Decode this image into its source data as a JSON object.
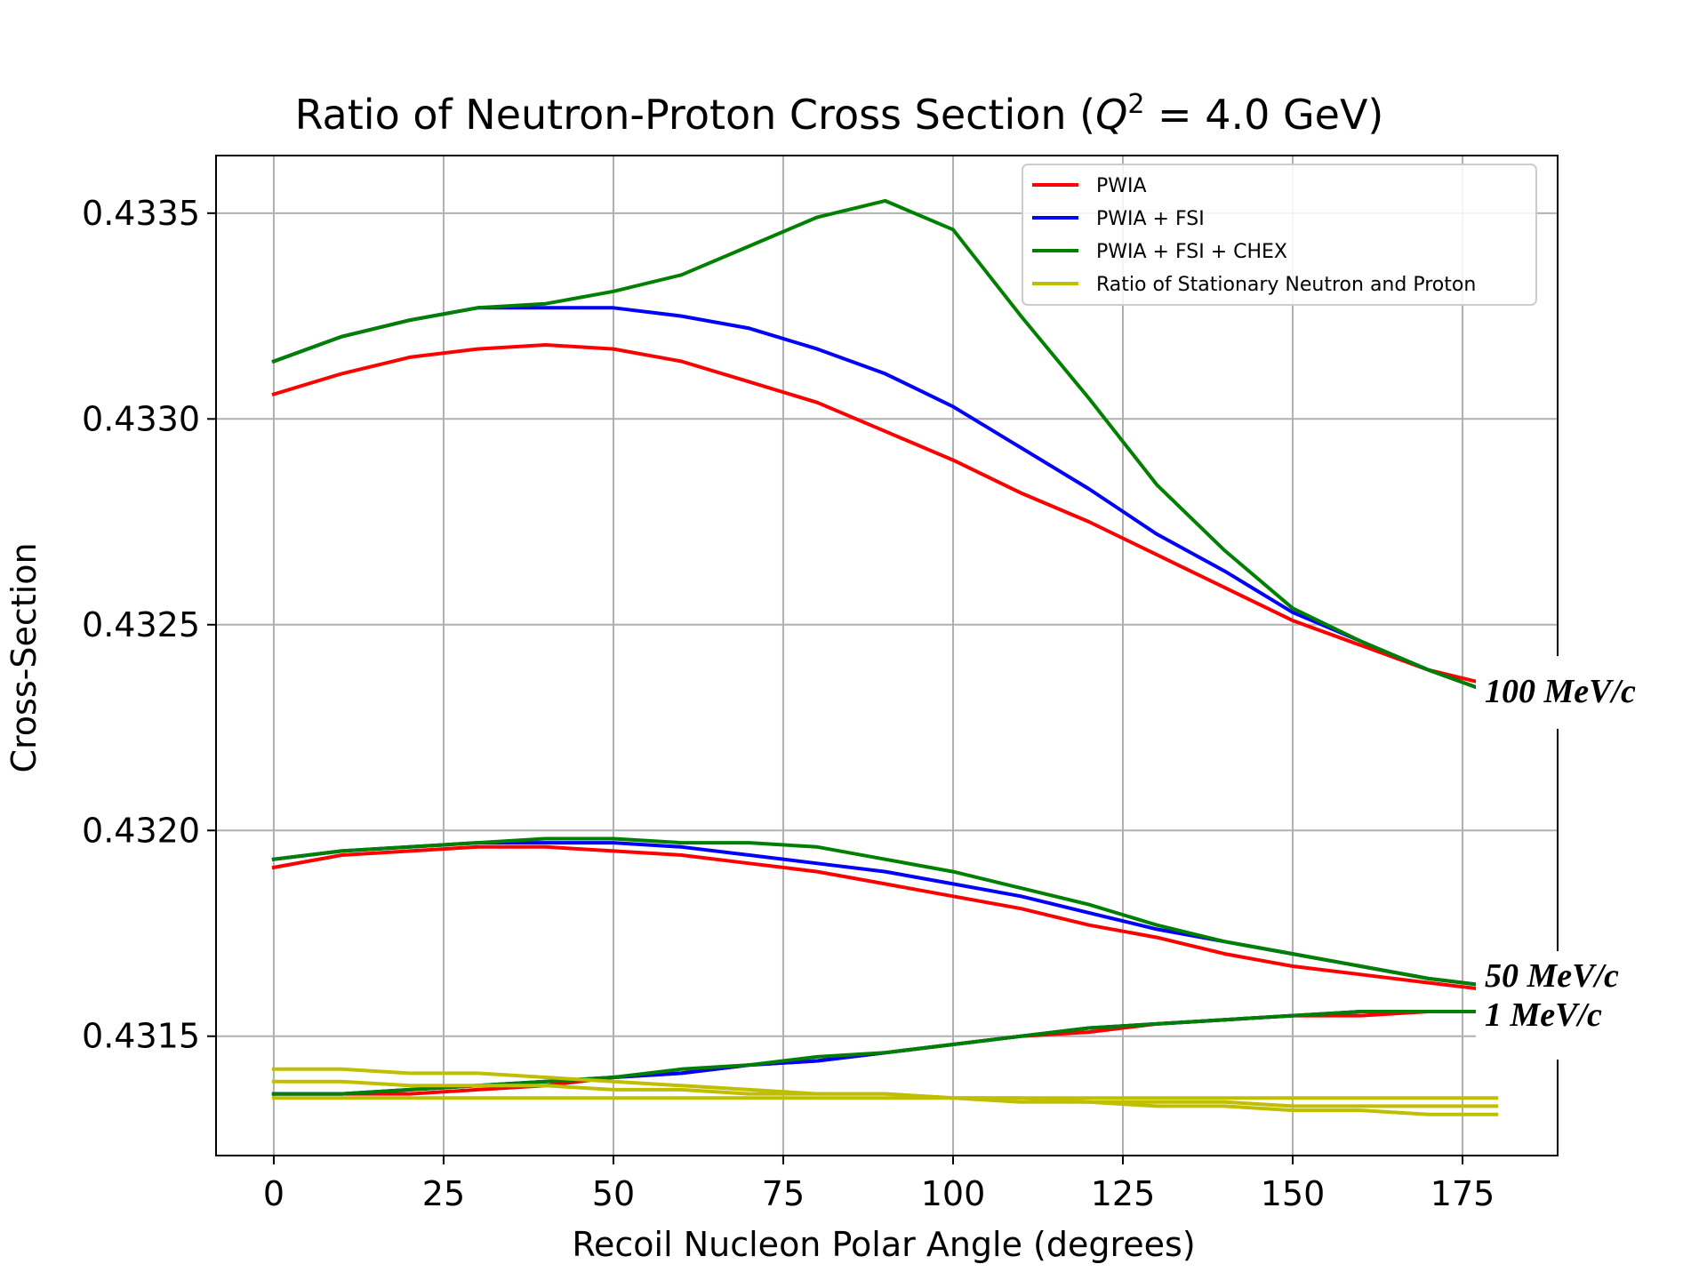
{
  "chart_data": {
    "type": "line",
    "title_main": "Ratio of Neutron-Proton Cross Section (",
    "title_q": "Q",
    "title_exp": "2",
    "title_rest": " = 4.0 GeV)",
    "xlabel": "Recoil Nucleon Polar Angle (degrees)",
    "ylabel": "Cross-Section",
    "xlim": [
      -8.5,
      189
    ],
    "ylim": [
      0.43121,
      0.43364
    ],
    "xticks": [
      0,
      25,
      50,
      75,
      100,
      125,
      150,
      175
    ],
    "yticks": [
      0.4315,
      0.432,
      0.4325,
      0.433,
      0.4335
    ],
    "ytick_labels": [
      "0.4315",
      "0.4320",
      "0.4325",
      "0.4330",
      "0.4335"
    ],
    "grid": true,
    "legend_position": "top-right",
    "legend": [
      {
        "label": "PWIA",
        "color": "#ff0000"
      },
      {
        "label": "PWIA + FSI",
        "color": "#0000ff"
      },
      {
        "label": "PWIA + FSI + CHEX",
        "color": "#008000"
      },
      {
        "label": "Ratio of Stationary Neutron and Proton",
        "color": "#bfbf00"
      }
    ],
    "annotations": [
      "100 MeV/c",
      "50 MeV/c",
      "1 MeV/c"
    ],
    "x": [
      0,
      10,
      20,
      30,
      40,
      50,
      60,
      70,
      80,
      90,
      100,
      110,
      120,
      130,
      140,
      150,
      160,
      170,
      180
    ],
    "series": [
      {
        "color": "#ff0000",
        "group": "100 MeV/c",
        "y": [
          0.43306,
          0.43311,
          0.43315,
          0.43317,
          0.43318,
          0.43317,
          0.43314,
          0.43309,
          0.43304,
          0.43297,
          0.4329,
          0.43282,
          0.43275,
          0.43267,
          0.43259,
          0.43251,
          0.43245,
          0.43239,
          0.43235
        ]
      },
      {
        "color": "#0000ff",
        "group": "100 MeV/c",
        "y": [
          0.43314,
          0.4332,
          0.43324,
          0.43327,
          0.43327,
          0.43327,
          0.43325,
          0.43322,
          0.43317,
          0.43311,
          0.43303,
          0.43293,
          0.43283,
          0.43272,
          0.43263,
          0.43253,
          0.43246,
          0.43239,
          0.43233
        ]
      },
      {
        "color": "#008000",
        "group": "100 MeV/c",
        "y": [
          0.43314,
          0.4332,
          0.43324,
          0.43327,
          0.43328,
          0.43331,
          0.43335,
          0.43342,
          0.43349,
          0.43353,
          0.43346,
          0.43325,
          0.43305,
          0.43284,
          0.43268,
          0.43254,
          0.43246,
          0.43239,
          0.43233
        ]
      },
      {
        "color": "#ff0000",
        "group": "50 MeV/c",
        "y": [
          0.43191,
          0.43194,
          0.43195,
          0.43196,
          0.43196,
          0.43195,
          0.43194,
          0.43192,
          0.4319,
          0.43187,
          0.43184,
          0.43181,
          0.43177,
          0.43174,
          0.4317,
          0.43167,
          0.43165,
          0.43163,
          0.43161
        ]
      },
      {
        "color": "#0000ff",
        "group": "50 MeV/c",
        "y": [
          0.43193,
          0.43195,
          0.43196,
          0.43197,
          0.43197,
          0.43197,
          0.43196,
          0.43194,
          0.43192,
          0.4319,
          0.43187,
          0.43184,
          0.4318,
          0.43176,
          0.43173,
          0.4317,
          0.43167,
          0.43164,
          0.43162
        ]
      },
      {
        "color": "#008000",
        "group": "50 MeV/c",
        "y": [
          0.43193,
          0.43195,
          0.43196,
          0.43197,
          0.43198,
          0.43198,
          0.43197,
          0.43197,
          0.43196,
          0.43193,
          0.4319,
          0.43186,
          0.43182,
          0.43177,
          0.43173,
          0.4317,
          0.43167,
          0.43164,
          0.43162
        ]
      },
      {
        "color": "#ff0000",
        "group": "1 MeV/c",
        "y": [
          0.43136,
          0.43136,
          0.43136,
          0.43137,
          0.43138,
          0.4314,
          0.43141,
          0.43143,
          0.43144,
          0.43146,
          0.43148,
          0.4315,
          0.43151,
          0.43153,
          0.43154,
          0.43155,
          0.43155,
          0.43156,
          0.43156
        ]
      },
      {
        "color": "#0000ff",
        "group": "1 MeV/c",
        "y": [
          0.43136,
          0.43136,
          0.43137,
          0.43138,
          0.43139,
          0.4314,
          0.43141,
          0.43143,
          0.43144,
          0.43146,
          0.43148,
          0.4315,
          0.43152,
          0.43153,
          0.43154,
          0.43155,
          0.43156,
          0.43156,
          0.43156
        ]
      },
      {
        "color": "#008000",
        "group": "1 MeV/c",
        "y": [
          0.43136,
          0.43136,
          0.43137,
          0.43138,
          0.43139,
          0.4314,
          0.43142,
          0.43143,
          0.43145,
          0.43146,
          0.43148,
          0.4315,
          0.43152,
          0.43153,
          0.43154,
          0.43155,
          0.43156,
          0.43156,
          0.43156
        ]
      },
      {
        "color": "#bfbf00",
        "group": "100 MeV/c",
        "y": [
          0.43142,
          0.43142,
          0.43141,
          0.43141,
          0.4314,
          0.43139,
          0.43138,
          0.43137,
          0.43136,
          0.43136,
          0.43135,
          0.43134,
          0.43134,
          0.43133,
          0.43133,
          0.43132,
          0.43132,
          0.43131,
          0.43131
        ]
      },
      {
        "color": "#bfbf00",
        "group": "50 MeV/c",
        "y": [
          0.43139,
          0.43139,
          0.43138,
          0.43138,
          0.43138,
          0.43137,
          0.43137,
          0.43136,
          0.43136,
          0.43136,
          0.43135,
          0.43135,
          0.43134,
          0.43134,
          0.43134,
          0.43133,
          0.43133,
          0.43133,
          0.43133
        ]
      },
      {
        "color": "#bfbf00",
        "group": "1 MeV/c",
        "y": [
          0.43135,
          0.43135,
          0.43135,
          0.43135,
          0.43135,
          0.43135,
          0.43135,
          0.43135,
          0.43135,
          0.43135,
          0.43135,
          0.43135,
          0.43135,
          0.43135,
          0.43135,
          0.43135,
          0.43135,
          0.43135,
          0.43135
        ]
      }
    ]
  }
}
